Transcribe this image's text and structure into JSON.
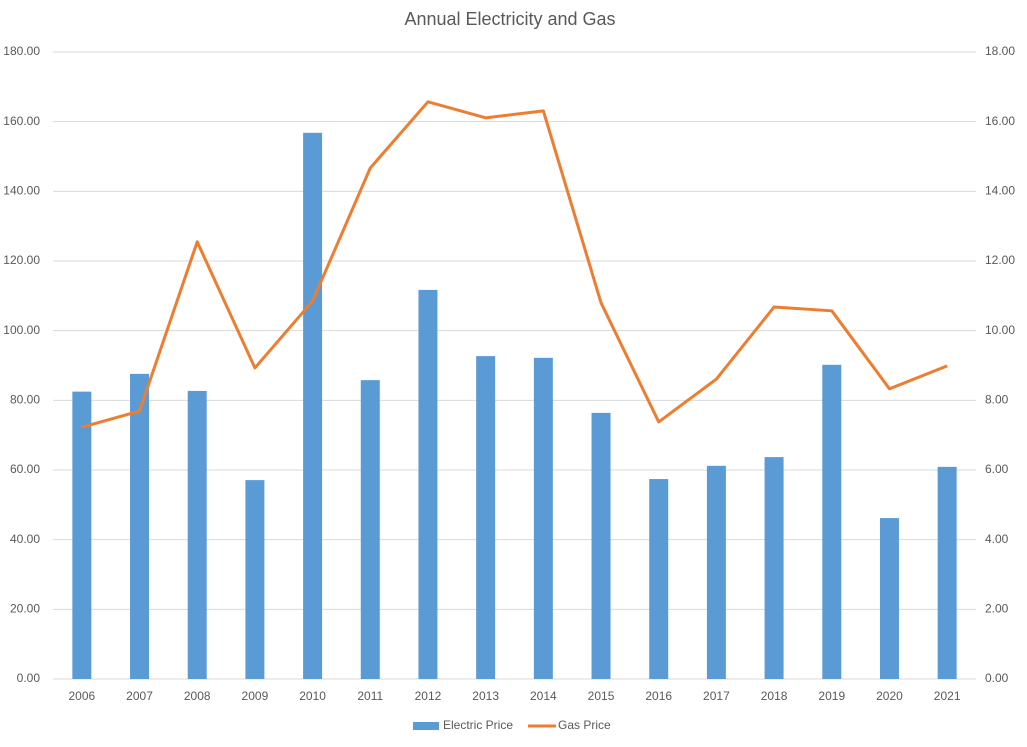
{
  "chart_data": {
    "type": "bar-line",
    "title": "Annual Electricity and Gas",
    "categories": [
      "2006",
      "2007",
      "2008",
      "2009",
      "2010",
      "2011",
      "2012",
      "2013",
      "2014",
      "2015",
      "2016",
      "2017",
      "2018",
      "2019",
      "2020",
      "2021"
    ],
    "series": [
      {
        "name": "Electric Price",
        "type": "bar",
        "color": "#5b9bd5",
        "axis": "y",
        "values": [
          82.5,
          87.6,
          82.7,
          57.1,
          156.8,
          85.8,
          111.7,
          92.7,
          92.2,
          76.4,
          57.4,
          61.2,
          63.7,
          90.2,
          46.2,
          60.9
        ]
      },
      {
        "name": "Gas Price",
        "type": "line",
        "color": "#ed7d31",
        "axis": "y2",
        "values": [
          7.23,
          7.69,
          12.55,
          8.93,
          10.85,
          14.67,
          16.57,
          16.11,
          16.31,
          10.8,
          7.38,
          8.61,
          10.68,
          10.57,
          8.33,
          8.99
        ]
      }
    ],
    "ylim": [
      0,
      180
    ],
    "yticks": [
      {
        "value": 0,
        "label": "0.00"
      },
      {
        "value": 20,
        "label": "20.00"
      },
      {
        "value": 40,
        "label": "40.00"
      },
      {
        "value": 60,
        "label": "60.00"
      },
      {
        "value": 80,
        "label": "80.00"
      },
      {
        "value": 100,
        "label": "100.00"
      },
      {
        "value": 120,
        "label": "120.00"
      },
      {
        "value": 140,
        "label": "140.00"
      },
      {
        "value": 160,
        "label": "160.00"
      },
      {
        "value": 180,
        "label": "180.00"
      }
    ],
    "y2lim": [
      0,
      18
    ],
    "y2ticks": [
      {
        "value": 0,
        "label": "0.00"
      },
      {
        "value": 2,
        "label": "2.00"
      },
      {
        "value": 4,
        "label": "4.00"
      },
      {
        "value": 6,
        "label": "6.00"
      },
      {
        "value": 8,
        "label": "8.00"
      },
      {
        "value": 10,
        "label": "10.00"
      },
      {
        "value": 12,
        "label": "12.00"
      },
      {
        "value": 14,
        "label": "14.00"
      },
      {
        "value": 16,
        "label": "16.00"
      },
      {
        "value": 18,
        "label": "18.00"
      }
    ],
    "grid": true,
    "legend": "bottom"
  }
}
